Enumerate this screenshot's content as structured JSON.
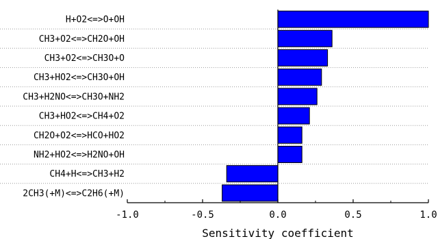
{
  "chart_data": {
    "type": "bar",
    "orientation": "horizontal",
    "categories": [
      "H+O2<=>O+OH",
      "CH3+O2<=>CH2O+OH",
      "CH3+O2<=>CH3O+O",
      "CH3+HO2<=>CH3O+OH",
      "CH3+H2NO<=>CH3O+NH2",
      "CH3+HO2<=>CH4+O2",
      "CH2O+O2<=>HCO+HO2",
      "NH2+HO2<=>H2NO+OH",
      "CH4+H<=>CH3+H2",
      "2CH3(+M)<=>C2H6(+M)"
    ],
    "values": [
      1.0,
      0.36,
      0.33,
      0.29,
      0.26,
      0.21,
      0.16,
      0.16,
      -0.34,
      -0.37
    ],
    "xlabel": "Sensitivity coefficient",
    "xlim": [
      -1.0,
      1.0
    ],
    "xticks": [
      -1.0,
      -0.5,
      0.0,
      0.5,
      1.0
    ],
    "xtick_labels": [
      "-1.0",
      "-0.5",
      "0.0",
      "0.5",
      "1.0"
    ],
    "grid": "horizontal dotted",
    "bar_color": "#0000ff",
    "bar_edge_color": "#000000"
  }
}
